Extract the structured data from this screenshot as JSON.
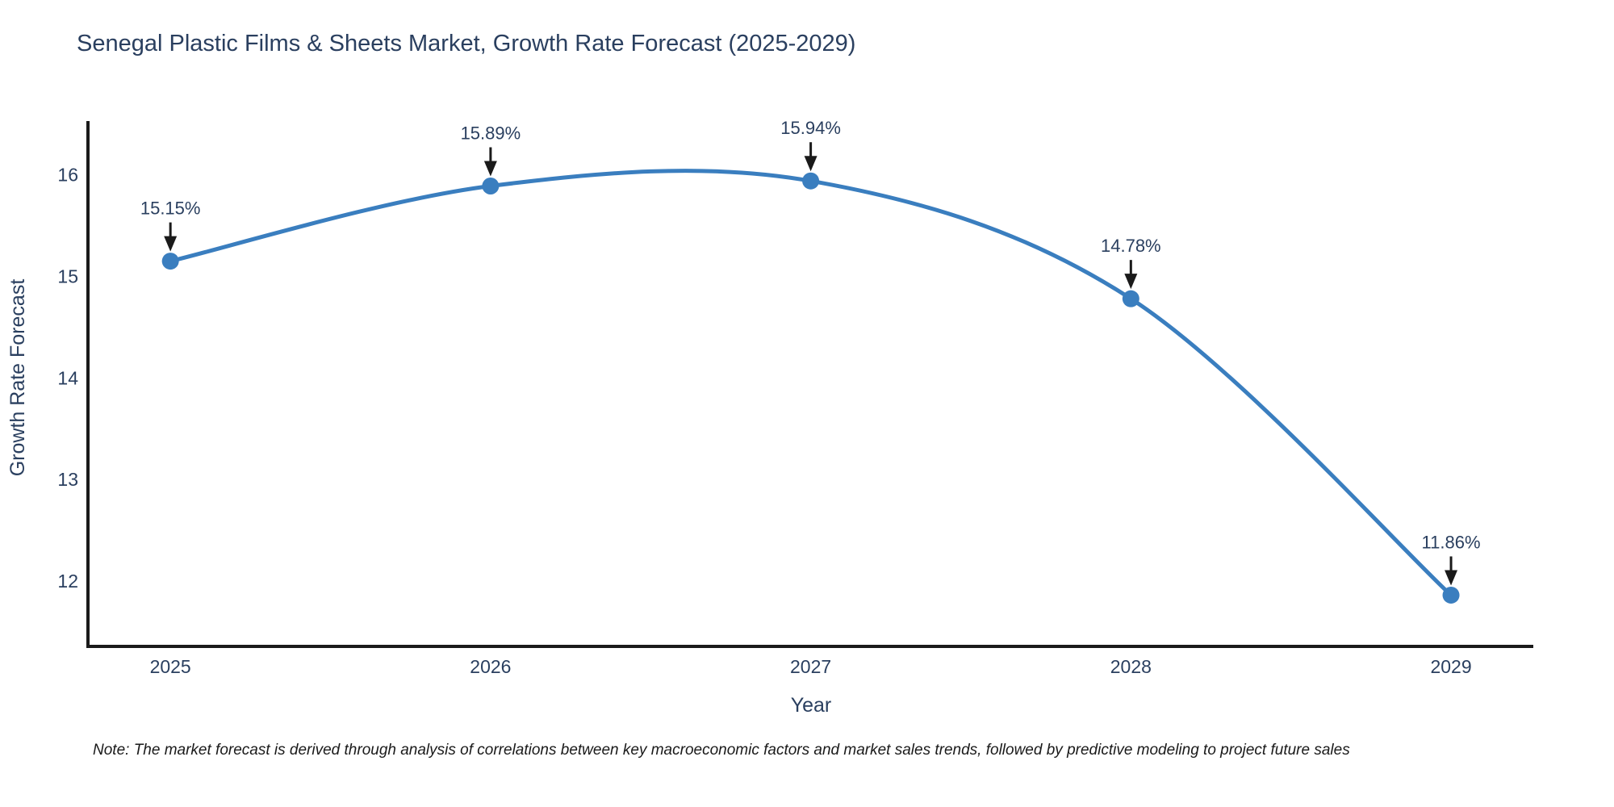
{
  "chart": {
    "title": "Senegal Plastic Films & Sheets Market, Growth Rate Forecast (2025-2029)",
    "xlabel": "Year",
    "ylabel": "Growth Rate Forecast",
    "note": "Note: The market forecast is derived through analysis of correlations between key macroeconomic factors and market sales trends, followed by predictive modeling to project future sales"
  },
  "chart_data": {
    "type": "line",
    "line_shape": "spline",
    "x": [
      2025,
      2026,
      2027,
      2028,
      2029
    ],
    "values": [
      15.15,
      15.89,
      15.94,
      14.78,
      11.86
    ],
    "point_labels": [
      "15.15%",
      "15.89%",
      "15.94%",
      "14.78%",
      "11.86%"
    ],
    "title": "Senegal Plastic Films & Sheets Market, Growth Rate Forecast (2025-2029)",
    "xlabel": "Year",
    "ylabel": "Growth Rate Forecast",
    "xticks": [
      "2025",
      "2026",
      "2027",
      "2028",
      "2029"
    ],
    "xtick_values": [
      2025,
      2026,
      2027,
      2028,
      2029
    ],
    "yticks": [
      12,
      13,
      14,
      15,
      16
    ],
    "xlim": [
      2024.745,
      2029.257
    ],
    "ylim": [
      11.355,
      16.53
    ],
    "grid": false,
    "legend": "none",
    "colors": {
      "line": "#3a7ebf",
      "marker": "#3a7ebf",
      "arrow": "#1a1a1a",
      "axis": "#1a1a1a",
      "text": "#2a3f5f"
    }
  }
}
